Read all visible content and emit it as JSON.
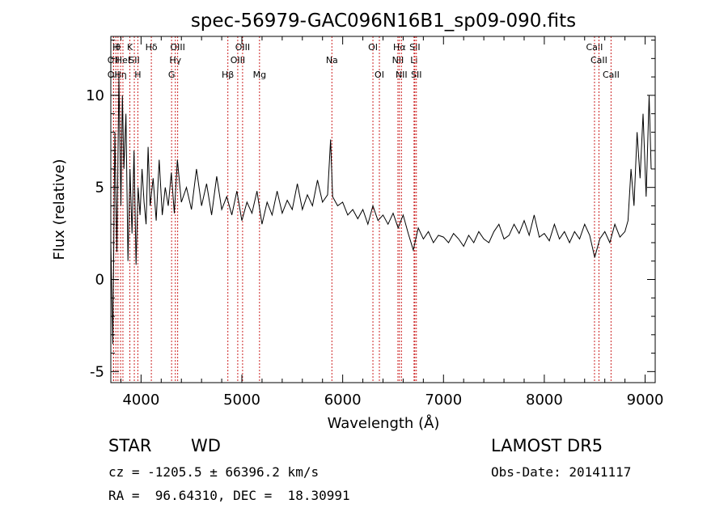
{
  "chart_data": {
    "type": "line",
    "title": "spec-56979-GAC096N16B1_sp09-090.fits",
    "xlabel": "Wavelength (Å)",
    "ylabel": "Flux (relative)",
    "xlim": [
      3700,
      9100
    ],
    "ylim": [
      -5.6,
      13.2
    ],
    "x_ticks": [
      4000,
      5000,
      6000,
      7000,
      8000,
      9000
    ],
    "x_tick_labels": [
      "4000",
      "5000",
      "6000",
      "7000",
      "8000",
      "9000"
    ],
    "y_ticks": [
      -5,
      0,
      5,
      10
    ],
    "y_tick_labels": [
      "-5",
      "0",
      "5",
      "10"
    ],
    "grid": false,
    "line_color": "#000000",
    "marker_color": "#cc2222",
    "series": [
      {
        "x": [
          3700,
          3720,
          3740,
          3760,
          3780,
          3800,
          3815,
          3830,
          3850,
          3870,
          3890,
          3910,
          3930,
          3950,
          3970,
          3990,
          4010,
          4030,
          4050,
          4070,
          4090,
          4120,
          4150,
          4180,
          4210,
          4240,
          4270,
          4300,
          4330,
          4360,
          4400,
          4450,
          4500,
          4550,
          4600,
          4650,
          4700,
          4750,
          4800,
          4850,
          4900,
          4950,
          5000,
          5050,
          5100,
          5150,
          5200,
          5250,
          5300,
          5350,
          5400,
          5450,
          5500,
          5550,
          5600,
          5650,
          5700,
          5750,
          5800,
          5850,
          5880,
          5900,
          5950,
          6000,
          6050,
          6100,
          6150,
          6200,
          6250,
          6300,
          6350,
          6400,
          6450,
          6500,
          6550,
          6600,
          6650,
          6700,
          6750,
          6800,
          6850,
          6900,
          6950,
          7000,
          7050,
          7100,
          7150,
          7200,
          7250,
          7300,
          7350,
          7400,
          7450,
          7500,
          7550,
          7600,
          7650,
          7700,
          7750,
          7800,
          7850,
          7900,
          7950,
          8000,
          8050,
          8100,
          8150,
          8200,
          8250,
          8300,
          8350,
          8400,
          8450,
          8500,
          8550,
          8600,
          8650,
          8700,
          8750,
          8800,
          8830,
          8860,
          8890,
          8920,
          8950,
          8980,
          9010,
          9040,
          9060
        ],
        "y": [
          2.0,
          -3.5,
          8.0,
          1.5,
          11.0,
          4.0,
          10.0,
          6.0,
          9.0,
          1.0,
          6.0,
          2.5,
          7.0,
          0.8,
          5.0,
          3.5,
          6.0,
          4.2,
          3.0,
          7.2,
          4.0,
          5.5,
          3.2,
          6.5,
          3.5,
          5.0,
          4.0,
          5.8,
          3.6,
          6.5,
          4.2,
          5.0,
          3.8,
          6.0,
          4.0,
          5.2,
          3.5,
          5.6,
          3.8,
          4.5,
          3.5,
          4.8,
          3.2,
          4.2,
          3.6,
          4.8,
          3.0,
          4.2,
          3.5,
          4.8,
          3.6,
          4.3,
          3.8,
          5.2,
          3.8,
          4.6,
          4.0,
          5.4,
          4.2,
          4.6,
          7.6,
          4.5,
          4.0,
          4.2,
          3.5,
          3.8,
          3.3,
          3.8,
          3.0,
          4.0,
          3.2,
          3.5,
          3.0,
          3.6,
          2.8,
          3.5,
          2.5,
          1.6,
          2.8,
          2.2,
          2.6,
          2.0,
          2.4,
          2.3,
          2.0,
          2.5,
          2.2,
          1.8,
          2.4,
          2.0,
          2.6,
          2.2,
          2.0,
          2.6,
          3.0,
          2.2,
          2.4,
          3.0,
          2.5,
          3.2,
          2.4,
          3.5,
          2.3,
          2.5,
          2.1,
          3.0,
          2.2,
          2.6,
          2.0,
          2.6,
          2.2,
          3.0,
          2.4,
          1.2,
          2.2,
          2.6,
          2.0,
          3.0,
          2.3,
          2.6,
          3.2,
          6.0,
          4.0,
          8.0,
          5.5,
          9.0,
          4.5,
          10.0,
          6.0
        ]
      }
    ],
    "line_markers": [
      {
        "x": 3727,
        "label": "OII",
        "row": 1
      },
      {
        "x": 3727,
        "label": "OII",
        "row": 2
      },
      {
        "x": 3750,
        "label": "H",
        "row": 0
      },
      {
        "x": 3771,
        "label": "θ",
        "row": 0
      },
      {
        "x": 3797,
        "label": "Hη",
        "row": 2
      },
      {
        "x": 3820,
        "label": "HeI",
        "row": 1
      },
      {
        "x": 3889,
        "label": "K",
        "row": 0
      },
      {
        "x": 3933,
        "label": "SII",
        "row": 1
      },
      {
        "x": 3968,
        "label": "H",
        "row": 2
      },
      {
        "x": 4102,
        "label": "Hδ",
        "row": 0
      },
      {
        "x": 4303,
        "label": "G",
        "row": 2
      },
      {
        "x": 4340,
        "label": "Hγ",
        "row": 1
      },
      {
        "x": 4363,
        "label": "OIII",
        "row": 0
      },
      {
        "x": 4861,
        "label": "Hβ",
        "row": 2
      },
      {
        "x": 4959,
        "label": "OIII",
        "row": 1
      },
      {
        "x": 5007,
        "label": "OIII",
        "row": 0
      },
      {
        "x": 5175,
        "label": "Mg",
        "row": 2
      },
      {
        "x": 5893,
        "label": "Na",
        "row": 1
      },
      {
        "x": 6300,
        "label": "OI",
        "row": 0
      },
      {
        "x": 6364,
        "label": "OI",
        "row": 2
      },
      {
        "x": 6548,
        "label": "NII",
        "row": 1
      },
      {
        "x": 6563,
        "label": "Hα",
        "row": 0
      },
      {
        "x": 6583,
        "label": "NII",
        "row": 2
      },
      {
        "x": 6708,
        "label": "Li",
        "row": 1
      },
      {
        "x": 6716,
        "label": "SII",
        "row": 0
      },
      {
        "x": 6731,
        "label": "SII",
        "row": 2
      },
      {
        "x": 8498,
        "label": "CaII",
        "row": 0
      },
      {
        "x": 8542,
        "label": "CaII",
        "row": 1
      },
      {
        "x": 8662,
        "label": "CaII",
        "row": 2
      }
    ]
  },
  "info": {
    "object_class": "STAR",
    "subclass": "WD",
    "survey": "LAMOST DR5",
    "redshift": "cz = -1205.5 ± 66396.2 km/s",
    "obs_date": "Obs-Date: 20141117",
    "coords": "RA =  96.64310, DEC =  18.30991"
  }
}
